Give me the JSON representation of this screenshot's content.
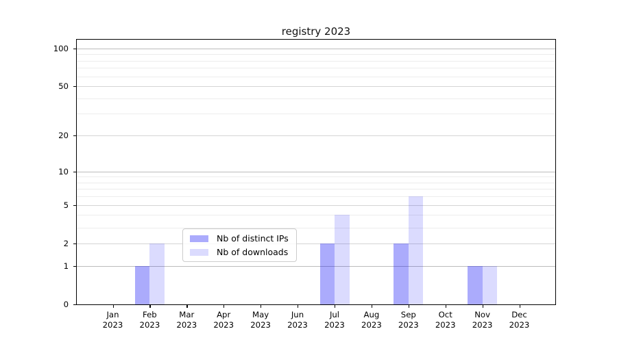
{
  "chart_data": {
    "type": "bar",
    "title": "registry 2023",
    "categories": [
      "Jan",
      "Feb",
      "Mar",
      "Apr",
      "May",
      "Jun",
      "Jul",
      "Aug",
      "Sep",
      "Oct",
      "Nov",
      "Dec"
    ],
    "year_label": "2023",
    "series": [
      {
        "name": "Nb of distinct IPs",
        "color": "rgba(10,10,245,0.34)",
        "values": [
          0,
          1,
          0,
          0,
          0,
          0,
          2,
          0,
          2,
          0,
          1,
          0
        ]
      },
      {
        "name": "Nb of downloads",
        "color": "rgba(10,10,245,0.145)",
        "values": [
          0,
          2,
          0,
          0,
          0,
          0,
          4,
          0,
          6,
          0,
          1,
          0
        ]
      }
    ],
    "y_scale": "log10(value+1)",
    "y_ticks": [
      0,
      1,
      2,
      5,
      10,
      20,
      50,
      100
    ],
    "y_decade_ticks": [
      1,
      10,
      100
    ],
    "y_minor_gridlines": [
      3,
      4,
      6,
      7,
      8,
      9,
      30,
      40,
      60,
      70,
      80,
      90
    ],
    "ylim": [
      0,
      117
    ],
    "xlabel": "",
    "ylabel": "",
    "grid": "horizontal",
    "legend_position": "lower center"
  }
}
